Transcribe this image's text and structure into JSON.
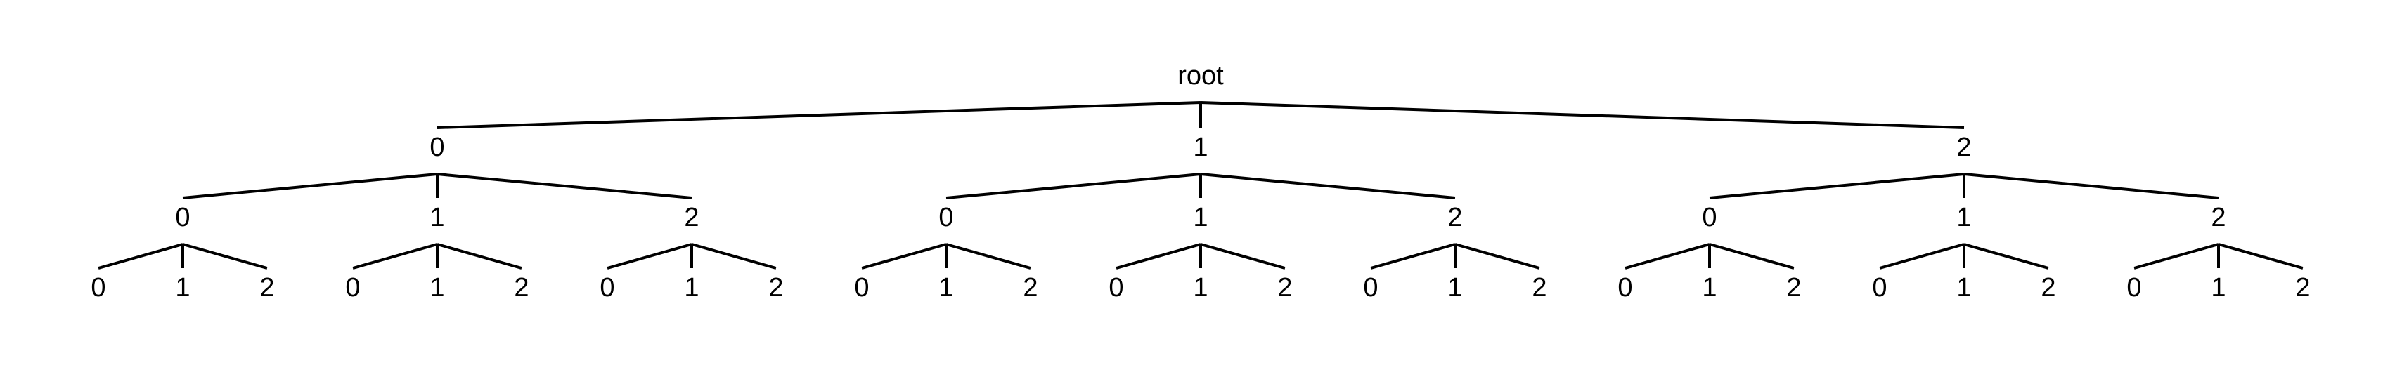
{
  "tree": {
    "label": "root",
    "children": [
      {
        "label": "0",
        "children": [
          {
            "label": "0",
            "children": [
              {
                "label": "0"
              },
              {
                "label": "1"
              },
              {
                "label": "2"
              }
            ]
          },
          {
            "label": "1",
            "children": [
              {
                "label": "0"
              },
              {
                "label": "1"
              },
              {
                "label": "2"
              }
            ]
          },
          {
            "label": "2",
            "children": [
              {
                "label": "0"
              },
              {
                "label": "1"
              },
              {
                "label": "2"
              }
            ]
          }
        ]
      },
      {
        "label": "1",
        "children": [
          {
            "label": "0",
            "children": [
              {
                "label": "0"
              },
              {
                "label": "1"
              },
              {
                "label": "2"
              }
            ]
          },
          {
            "label": "1",
            "children": [
              {
                "label": "0"
              },
              {
                "label": "1"
              },
              {
                "label": "2"
              }
            ]
          },
          {
            "label": "2",
            "children": [
              {
                "label": "0"
              },
              {
                "label": "1"
              },
              {
                "label": "2"
              }
            ]
          }
        ]
      },
      {
        "label": "2",
        "children": [
          {
            "label": "0",
            "children": [
              {
                "label": "0"
              },
              {
                "label": "1"
              },
              {
                "label": "2"
              }
            ]
          },
          {
            "label": "1",
            "children": [
              {
                "label": "0"
              },
              {
                "label": "1"
              },
              {
                "label": "2"
              }
            ]
          },
          {
            "label": "2",
            "children": [
              {
                "label": "0"
              },
              {
                "label": "1"
              },
              {
                "label": "2"
              }
            ]
          }
        ]
      }
    ]
  },
  "colors": {
    "line": "#000000",
    "text": "#000000",
    "background": "#ffffff"
  }
}
